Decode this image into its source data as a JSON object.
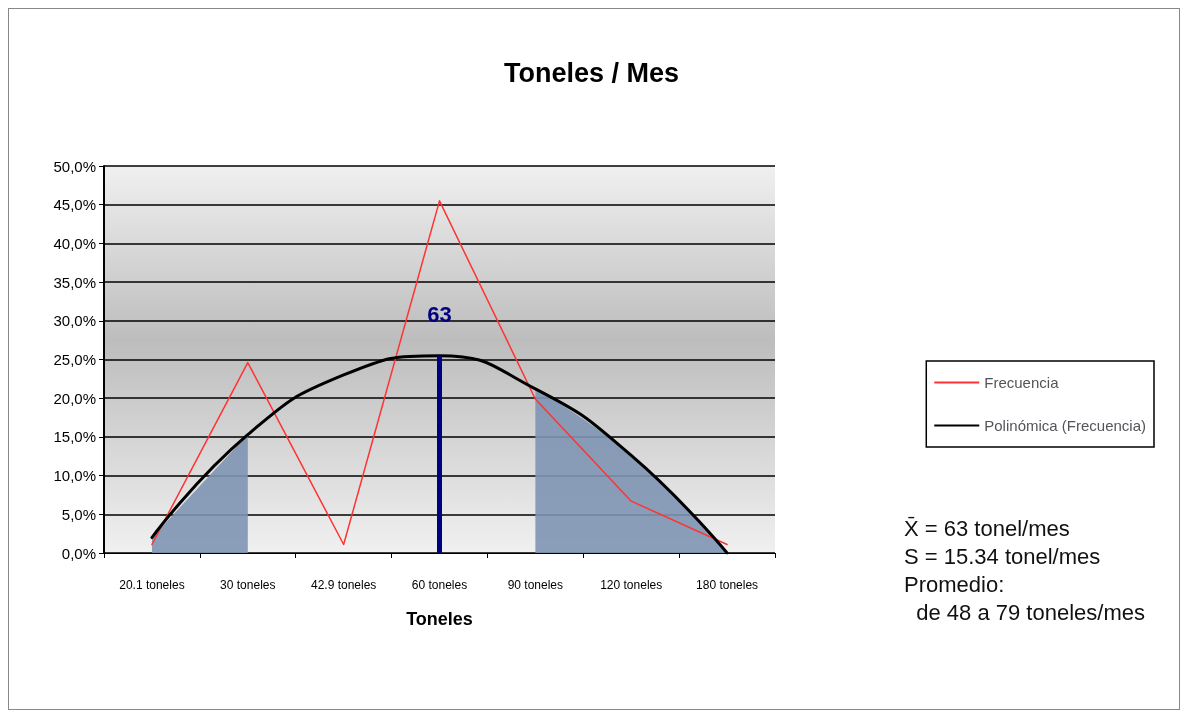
{
  "chart_data": {
    "type": "line",
    "title": "Toneles / Mes",
    "xlabel": "Toneles",
    "categories": [
      "20.1 toneles",
      "30 toneles",
      "42.9 toneles",
      "60 toneles",
      "90 toneles",
      "120 toneles",
      "180 toneles"
    ],
    "series": [
      {
        "type": "area",
        "color": "#7f95b3",
        "values": [
          2.0,
          15.3,
          null,
          null,
          null,
          null,
          null
        ]
      },
      {
        "type": "area",
        "color": "#7f95b3",
        "values": [
          null,
          null,
          null,
          null,
          21.2,
          12.6,
          0
        ]
      },
      {
        "name": "Frecuencia",
        "color": "#ff3333",
        "values": [
          1.1,
          24.6,
          1.1,
          45.5,
          19.9,
          6.7,
          1.1
        ]
      },
      {
        "name": "Polinómica (Frecuencia)",
        "color": "#000000",
        "values": [
          2.0,
          15.3,
          23.0,
          25.5,
          21.2,
          12.6,
          0
        ]
      }
    ],
    "ylim": [
      0,
      50
    ],
    "yticks": [
      {
        "value": 0,
        "label": "0,0%"
      },
      {
        "value": 5,
        "label": "5,0%"
      },
      {
        "value": 10,
        "label": "10,0%"
      },
      {
        "value": 15,
        "label": "15,0%"
      },
      {
        "value": 20,
        "label": "20,0%"
      },
      {
        "value": 25,
        "label": "25,0%"
      },
      {
        "value": 30,
        "label": "30,0%"
      },
      {
        "value": 35,
        "label": "35,0%"
      },
      {
        "value": 40,
        "label": "40,0%"
      },
      {
        "value": 45,
        "label": "45,0%"
      },
      {
        "value": 50,
        "label": "50,0%"
      }
    ],
    "grid": "y",
    "legend": "right",
    "marker": "none",
    "line_style": "solid",
    "ref_lines": [
      {
        "axis": "x",
        "value": "60 toneles",
        "label": "63",
        "color": "#000080"
      }
    ],
    "annotations": [
      "X̄ = 63 tonel/mes",
      "S = 15.34 tonel/mes",
      "Promedio:",
      "  de 48 a 79 toneles/mes"
    ]
  }
}
